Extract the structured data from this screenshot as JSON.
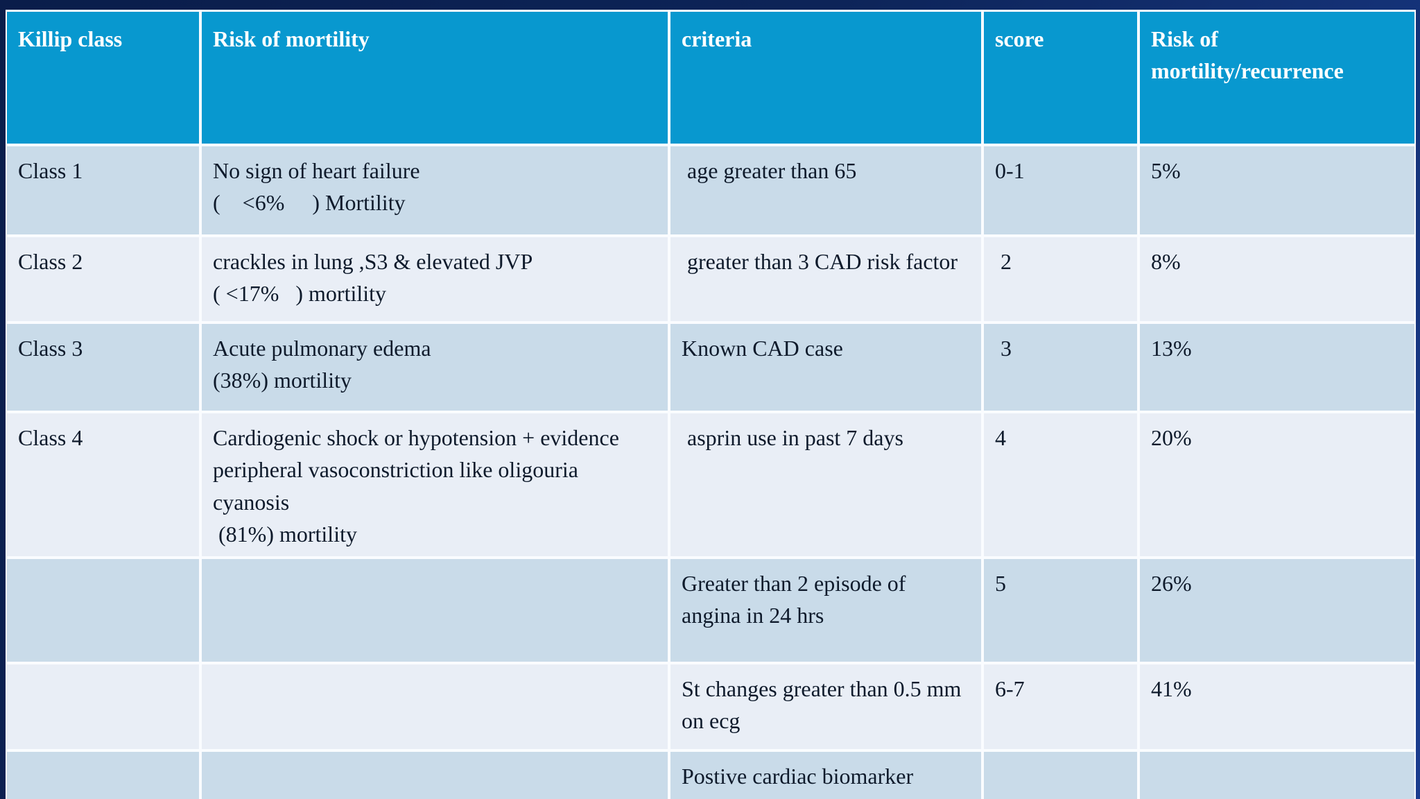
{
  "colors": {
    "accent": "#0898cf",
    "band_dark": "#c9dbe9",
    "band_light": "#e9eef6",
    "top_bar": "#0a1d4a",
    "border_white": "#fafcff",
    "header_text": "#ffffff",
    "body_text": "#0e1a2b"
  },
  "table": {
    "columns": [
      "Killip class",
      "Risk of mortility",
      "criteria",
      "score",
      "Risk of mortility/recurrence"
    ],
    "rows": [
      {
        "cells": [
          "Class 1",
          "No sign of heart failure\n(    <6%     ) Mortility",
          " age greater than 65",
          "0-1",
          "5%"
        ]
      },
      {
        "cells": [
          "Class 2",
          "crackles in lung ,S3 & elevated JVP\n( <17%   ) mortility",
          " greater than 3 CAD risk factor",
          " 2",
          "8%"
        ]
      },
      {
        "cells": [
          "Class 3",
          "Acute pulmonary edema\n(38%) mortility",
          "Known CAD case",
          " 3",
          "13%"
        ]
      },
      {
        "cells": [
          "Class 4",
          "Cardiogenic shock or hypotension + evidence peripheral vasoconstriction like oligouria  cyanosis\n (81%) mortility",
          " asprin use in past 7 days",
          "4",
          "20%"
        ]
      },
      {
        "cells": [
          "",
          "",
          "Greater than 2 episode of angina in 24 hrs",
          "5",
          "26%"
        ]
      },
      {
        "cells": [
          "",
          "",
          "St changes greater than 0.5 mm on ecg",
          "6-7",
          "41%"
        ]
      },
      {
        "cells": [
          "",
          "",
          "Postive cardiac biomarker",
          "",
          ""
        ]
      }
    ]
  }
}
